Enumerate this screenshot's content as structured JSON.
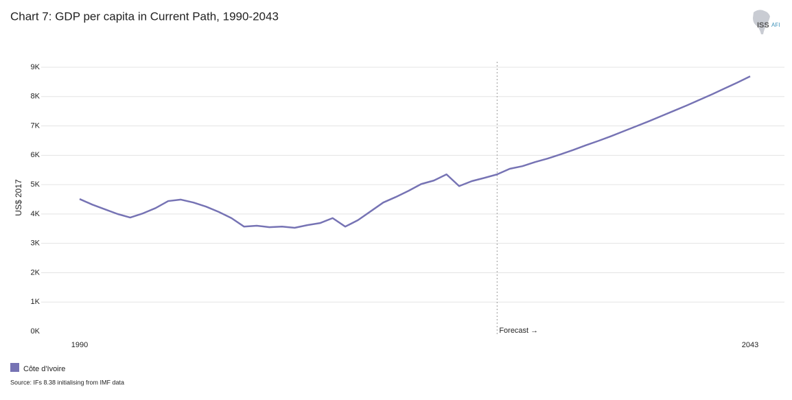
{
  "chart_data": {
    "type": "line",
    "title": "Chart 7: GDP per capita in Current Path, 1990-2043",
    "ylabel": "US$ 2017",
    "source": "Source: IFs 8.38 initialising from IMF data",
    "logo": [
      "ISS",
      "AFI"
    ],
    "annotation": {
      "x": 2023,
      "label": "Forecast →"
    },
    "x": [
      1990,
      1991,
      1992,
      1993,
      1994,
      1995,
      1996,
      1997,
      1998,
      1999,
      2000,
      2001,
      2002,
      2003,
      2004,
      2005,
      2006,
      2007,
      2008,
      2009,
      2010,
      2011,
      2012,
      2013,
      2014,
      2015,
      2016,
      2017,
      2018,
      2019,
      2020,
      2021,
      2022,
      2023,
      2024,
      2025,
      2026,
      2027,
      2028,
      2029,
      2030,
      2031,
      2032,
      2033,
      2034,
      2035,
      2036,
      2037,
      2038,
      2039,
      2040,
      2041,
      2042,
      2043
    ],
    "series": [
      {
        "name": "Côte d'Ivoire",
        "color": "#7673b4",
        "values": [
          4510,
          4320,
          4160,
          4000,
          3880,
          4020,
          4200,
          4440,
          4490,
          4390,
          4250,
          4070,
          3860,
          3570,
          3600,
          3550,
          3570,
          3530,
          3620,
          3690,
          3860,
          3570,
          3790,
          4090,
          4390,
          4580,
          4790,
          5020,
          5140,
          5350,
          4950,
          5120,
          5230,
          5350,
          5540,
          5630,
          5770,
          5890,
          6030,
          6180,
          6340,
          6490,
          6650,
          6820,
          6990,
          7160,
          7340,
          7520,
          7700,
          7890,
          8080,
          8280,
          8480,
          8690
        ]
      }
    ],
    "xlim": [
      1990,
      2043
    ],
    "xticks": [
      1990,
      2043
    ],
    "ylim": [
      0,
      9000
    ],
    "yticks": [
      {
        "value": 0,
        "label": "0K"
      },
      {
        "value": 1000,
        "label": "1K"
      },
      {
        "value": 2000,
        "label": "2K"
      },
      {
        "value": 3000,
        "label": "3K"
      },
      {
        "value": 4000,
        "label": "4K"
      },
      {
        "value": 5000,
        "label": "5K"
      },
      {
        "value": 6000,
        "label": "6K"
      },
      {
        "value": 7000,
        "label": "7K"
      },
      {
        "value": 8000,
        "label": "8K"
      },
      {
        "value": 9000,
        "label": "9K"
      }
    ],
    "grid": true
  }
}
